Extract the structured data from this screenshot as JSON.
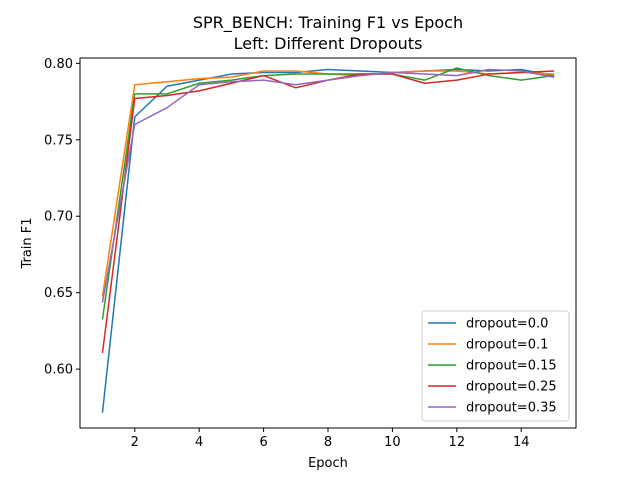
{
  "chart_data": {
    "type": "line",
    "title": "SPR_BENCH: Training F1 vs Epoch",
    "subtitle": "Left: Different Dropouts",
    "xlabel": "Epoch",
    "ylabel": "Train F1",
    "xlim": [
      0.3,
      15.7
    ],
    "ylim": [
      0.5615,
      0.8035
    ],
    "xticks": [
      2,
      4,
      6,
      8,
      10,
      12,
      14
    ],
    "yticks": [
      0.6,
      0.65,
      0.7,
      0.75,
      0.8
    ],
    "ytick_labels": [
      "0.60",
      "0.65",
      "0.70",
      "0.75",
      "0.80"
    ],
    "grid": false,
    "legend_position": "lower-right",
    "x": [
      1,
      2,
      3,
      4,
      5,
      6,
      7,
      8,
      9,
      10,
      11,
      12,
      13,
      14,
      15
    ],
    "series": [
      {
        "name": "dropout=0.0",
        "color": "#1f77b4",
        "values": [
          0.572,
          0.765,
          0.785,
          0.789,
          0.793,
          0.794,
          0.794,
          0.796,
          0.795,
          0.794,
          0.795,
          0.796,
          0.795,
          0.796,
          0.792
        ]
      },
      {
        "name": "dropout=0.1",
        "color": "#ff7f0e",
        "values": [
          0.648,
          0.786,
          0.788,
          0.79,
          0.791,
          0.795,
          0.795,
          0.793,
          0.792,
          0.794,
          0.795,
          0.795,
          0.793,
          0.794,
          0.793
        ]
      },
      {
        "name": "dropout=0.15",
        "color": "#2ca02c",
        "values": [
          0.633,
          0.78,
          0.78,
          0.787,
          0.789,
          0.792,
          0.793,
          0.793,
          0.793,
          0.793,
          0.789,
          0.797,
          0.792,
          0.789,
          0.792
        ]
      },
      {
        "name": "dropout=0.25",
        "color": "#d62728",
        "values": [
          0.611,
          0.777,
          0.779,
          0.782,
          0.787,
          0.792,
          0.784,
          0.789,
          0.793,
          0.793,
          0.787,
          0.789,
          0.793,
          0.794,
          0.795
        ]
      },
      {
        "name": "dropout=0.35",
        "color": "#9467bd",
        "values": [
          0.644,
          0.76,
          0.771,
          0.786,
          0.788,
          0.789,
          0.786,
          0.789,
          0.792,
          0.794,
          0.793,
          0.792,
          0.796,
          0.795,
          0.791
        ]
      }
    ]
  }
}
